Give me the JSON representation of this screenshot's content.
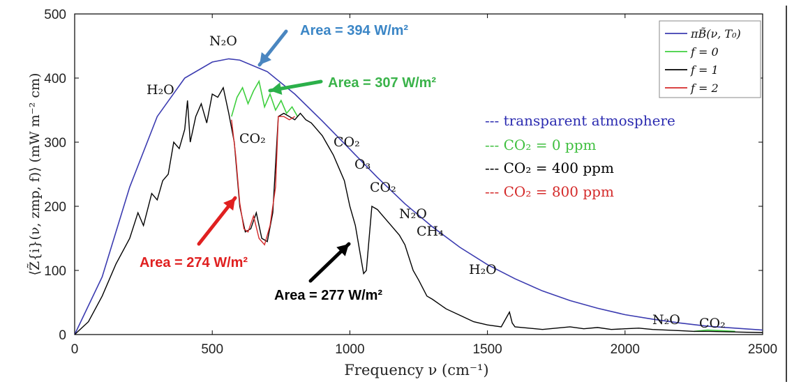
{
  "chart_data": {
    "type": "line",
    "xlabel": "Frequency ν (cm⁻¹)",
    "ylabel": "⟨Z̃{i}(ν, zmp, f)⟩ (mW m⁻² cm)",
    "xlim": [
      0,
      2500
    ],
    "ylim": [
      0,
      500
    ],
    "xticks": [
      "0",
      "500",
      "1000",
      "1500",
      "2000",
      "2500"
    ],
    "yticks": [
      "0",
      "100",
      "200",
      "300",
      "400",
      "500"
    ],
    "grid": false,
    "legend_position": "top-right",
    "legend": [
      {
        "label": "πB̃(ν, T₀)",
        "color": "#3b3bb0"
      },
      {
        "label": "f = 0",
        "color": "#3fcf3f"
      },
      {
        "label": "f = 1",
        "color": "#000000"
      },
      {
        "label": "f = 2",
        "color": "#d42a2a"
      }
    ],
    "series": [
      {
        "color": "#3b3bb0",
        "x": [
          0,
          100,
          200,
          300,
          400,
          500,
          560,
          600,
          700,
          800,
          900,
          1000,
          1100,
          1200,
          1300,
          1400,
          1500,
          1600,
          1700,
          1800,
          1900,
          2000,
          2100,
          2200,
          2300,
          2400,
          2500
        ],
        "y": [
          0,
          90,
          230,
          340,
          400,
          425,
          430,
          428,
          410,
          375,
          333,
          289,
          245,
          204,
          168,
          136,
          109,
          87,
          68,
          53,
          41,
          31,
          24,
          18,
          13,
          10,
          7
        ]
      },
      {
        "color": "#3fcf3f",
        "x": [
          570,
          590,
          610,
          630,
          650,
          670,
          690,
          710,
          730,
          750,
          770,
          790,
          810,
          2250,
          2300,
          2350,
          2400
        ],
        "y": [
          340,
          370,
          385,
          360,
          380,
          395,
          355,
          375,
          350,
          365,
          345,
          355,
          340,
          5,
          7,
          6,
          5
        ]
      },
      {
        "color": "#000000",
        "x": [
          0,
          50,
          100,
          150,
          200,
          230,
          250,
          280,
          300,
          320,
          340,
          360,
          380,
          400,
          410,
          420,
          440,
          460,
          480,
          500,
          520,
          540,
          560,
          580,
          600,
          620,
          640,
          660,
          680,
          700,
          720,
          740,
          760,
          780,
          800,
          820,
          840,
          860,
          880,
          900,
          920,
          940,
          960,
          980,
          1000,
          1020,
          1040,
          1050,
          1060,
          1080,
          1100,
          1120,
          1150,
          1180,
          1200,
          1230,
          1250,
          1280,
          1300,
          1350,
          1400,
          1450,
          1500,
          1550,
          1580,
          1590,
          1600,
          1650,
          1700,
          1750,
          1800,
          1850,
          1900,
          1950,
          2000,
          2050,
          2100,
          2150,
          2200,
          2250,
          2300,
          2400,
          2500
        ],
        "y": [
          0,
          20,
          60,
          110,
          150,
          190,
          170,
          220,
          210,
          240,
          250,
          300,
          290,
          320,
          365,
          300,
          340,
          360,
          330,
          375,
          370,
          385,
          345,
          300,
          200,
          160,
          165,
          190,
          150,
          145,
          190,
          340,
          345,
          340,
          335,
          345,
          335,
          330,
          320,
          310,
          295,
          280,
          260,
          240,
          200,
          170,
          120,
          95,
          100,
          200,
          195,
          185,
          170,
          155,
          140,
          100,
          85,
          60,
          55,
          40,
          30,
          20,
          15,
          12,
          35,
          18,
          12,
          10,
          8,
          10,
          12,
          9,
          11,
          8,
          9,
          10,
          8,
          7,
          6,
          5,
          5,
          4,
          3
        ]
      },
      {
        "color": "#d42a2a",
        "x": [
          570,
          585,
          600,
          615,
          630,
          650,
          670,
          690,
          710,
          730,
          740,
          760,
          780,
          800
        ],
        "y": [
          335,
          280,
          205,
          165,
          160,
          185,
          150,
          140,
          170,
          230,
          340,
          340,
          335,
          340
        ]
      }
    ],
    "annotations": [
      {
        "text": "Area = 394 W/m²",
        "color": "#3b86c6"
      },
      {
        "text": "Area = 307 W/m²",
        "color": "#3ab34a"
      },
      {
        "text": "Area = 274 W/m²",
        "color": "#e02020"
      },
      {
        "text": "Area = 277 W/m²",
        "color": "#000000"
      }
    ],
    "molecule_labels": [
      "N₂O",
      "H₂O",
      "CO₂",
      "CO₂",
      "O₃",
      "CO₂",
      "N₂O",
      "CH₄",
      "H₂O",
      "N₂O",
      "CO₂"
    ],
    "secondary_legend": [
      {
        "text": "--- transparent atmosphere",
        "color": "#2b2bb0"
      },
      {
        "text": "--- CO₂ = 0 ppm",
        "color": "#3fbf3f"
      },
      {
        "text": "--- CO₂ = 400 ppm",
        "color": "#000000"
      },
      {
        "text": "--- CO₂ = 800 ppm",
        "color": "#d42a2a"
      }
    ]
  }
}
